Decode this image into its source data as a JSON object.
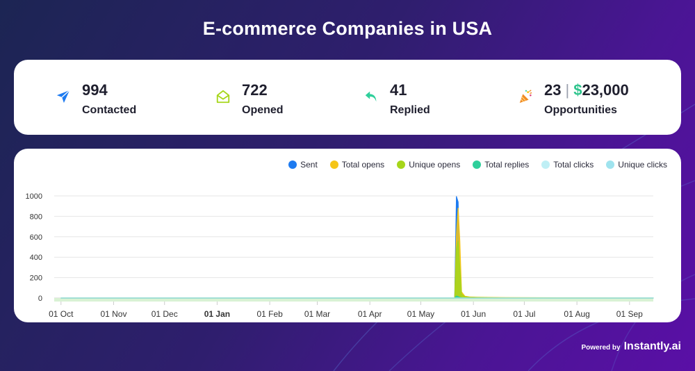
{
  "page": {
    "title": "E-commerce Companies in USA"
  },
  "stats": [
    {
      "value": "994",
      "label": "Contacted",
      "icon": "paper-plane-icon",
      "color": "#1e7bf0"
    },
    {
      "value": "722",
      "label": "Opened",
      "icon": "open-envelope-icon",
      "color": "#a6d61a"
    },
    {
      "value": "41",
      "label": "Replied",
      "icon": "reply-arrow-icon",
      "color": "#2fcf9b"
    },
    {
      "value": "23",
      "separator": "|",
      "currency": "$",
      "amount": "23,000",
      "label": "Opportunities",
      "icon": "party-popper-icon",
      "color": "#f08a24"
    }
  ],
  "chart_data": {
    "type": "area",
    "title": "",
    "xlabel": "",
    "ylabel": "",
    "ylim": [
      0,
      1000
    ],
    "yticks": [
      0,
      200,
      400,
      600,
      800,
      1000
    ],
    "x_ticks": [
      "01 Oct",
      "01 Nov",
      "01 Dec",
      "01 Jan",
      "01 Feb",
      "01 Mar",
      "01 Apr",
      "01 May",
      "01 Jun",
      "01 Jul",
      "01 Aug",
      "01 Sep"
    ],
    "x_ticks_bold": [
      "01 Jan"
    ],
    "x_range_days": [
      -4,
      349
    ],
    "x_tick_days": [
      0,
      31,
      61,
      92,
      123,
      151,
      182,
      212,
      243,
      273,
      304,
      335
    ],
    "x": [
      0,
      230,
      232,
      233,
      234,
      235,
      236,
      238,
      241,
      245,
      252,
      262,
      349
    ],
    "series": [
      {
        "name": "Sent",
        "color": "#1e7bf0",
        "values": [
          0,
          0,
          0,
          994,
          940,
          80,
          10,
          0,
          0,
          0,
          0,
          0,
          0
        ]
      },
      {
        "name": "Total opens",
        "color": "#f5c518",
        "values": [
          0,
          0,
          0,
          620,
          880,
          560,
          60,
          18,
          10,
          8,
          6,
          4,
          0
        ]
      },
      {
        "name": "Unique opens",
        "color": "#a6d61a",
        "values": [
          0,
          0,
          0,
          480,
          560,
          300,
          40,
          12,
          8,
          6,
          4,
          2,
          0
        ]
      },
      {
        "name": "Total replies",
        "color": "#2fcf9b",
        "values": [
          0,
          0,
          0,
          20,
          14,
          6,
          2,
          1,
          0,
          0,
          0,
          0,
          0
        ]
      },
      {
        "name": "Total clicks",
        "color": "#bfeff5",
        "values": [
          0,
          0,
          0,
          0,
          0,
          0,
          0,
          0,
          0,
          0,
          0,
          0,
          0
        ]
      },
      {
        "name": "Unique clicks",
        "color": "#9fe3ee",
        "values": [
          0,
          0,
          0,
          0,
          0,
          0,
          0,
          0,
          0,
          0,
          0,
          0,
          0
        ]
      }
    ]
  },
  "legend": {
    "items": [
      {
        "label": "Sent",
        "color": "#1e7bf0"
      },
      {
        "label": "Total opens",
        "color": "#f5c518"
      },
      {
        "label": "Unique opens",
        "color": "#a6d61a"
      },
      {
        "label": "Total replies",
        "color": "#2fcf9b"
      },
      {
        "label": "Total clicks",
        "color": "#bfeff5"
      },
      {
        "label": "Unique clicks",
        "color": "#9fe3ee"
      }
    ]
  },
  "footer": {
    "powered_by": "Powered by",
    "brand": "Instantly.ai"
  }
}
